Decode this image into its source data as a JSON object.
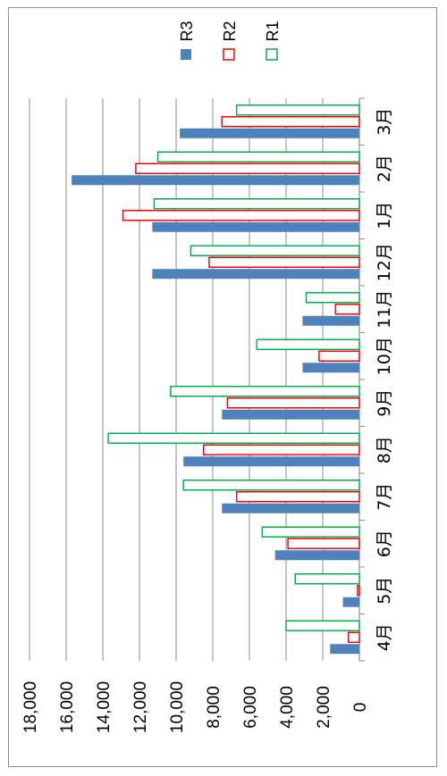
{
  "chart_data": {
    "type": "bar",
    "orientation": "rotated",
    "categories": [
      "4月",
      "5月",
      "6月",
      "7月",
      "8月",
      "9月",
      "10月",
      "11月",
      "12月",
      "1月",
      "2月",
      "3月"
    ],
    "series": [
      {
        "name": "R3",
        "style": "filled",
        "color": "#4f81bd",
        "values": [
          1600,
          900,
          4600,
          7500,
          9600,
          7500,
          3100,
          3100,
          11300,
          11300,
          15700,
          9800
        ]
      },
      {
        "name": "R2",
        "style": "outline",
        "color": "#ff0000",
        "values": [
          600,
          100,
          3900,
          6700,
          8500,
          7200,
          2200,
          1300,
          8200,
          12900,
          12200,
          7500
        ]
      },
      {
        "name": "R1",
        "style": "outline",
        "color": "#00b050",
        "values": [
          4000,
          3500,
          5300,
          9600,
          13700,
          10300,
          5600,
          2900,
          9200,
          11200,
          11000,
          6700
        ]
      }
    ],
    "ylim": [
      0,
      18000
    ],
    "yticks": [
      "0",
      "2,000",
      "4,000",
      "6,000",
      "8,000",
      "10,000",
      "12,000",
      "14,000",
      "16,000",
      "18,000"
    ],
    "grid": true,
    "legend": "top-right"
  }
}
